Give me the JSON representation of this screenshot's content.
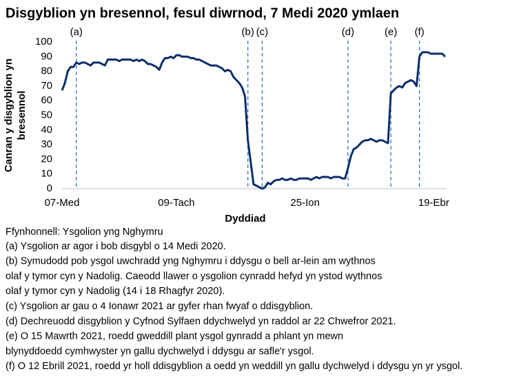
{
  "chart_data": {
    "type": "line",
    "title": "Disgyblion yn bresennol, fesul diwrnod, 7 Medi 2020 ymlaen",
    "xlabel": "Dyddiad",
    "ylabel": [
      "Canran y disgyblion yn",
      "bresennol"
    ],
    "categories": [
      "07-Med",
      null,
      null,
      null,
      null,
      null,
      null,
      null,
      null,
      null,
      null,
      null,
      null,
      null,
      null,
      null,
      null,
      null,
      null,
      null,
      null,
      null,
      null,
      null,
      null,
      null,
      null,
      null,
      null,
      null,
      null,
      null,
      null,
      null,
      null,
      null,
      null,
      null,
      null,
      null,
      "09-Tach",
      null,
      null,
      null,
      null,
      null,
      null,
      null,
      null,
      null,
      null,
      null,
      null,
      null,
      null,
      null,
      null,
      null,
      null,
      null,
      null,
      null,
      null,
      null,
      null,
      null,
      null,
      null,
      null,
      null,
      null,
      null,
      null,
      null,
      null,
      null,
      null,
      null,
      null,
      null,
      null,
      null,
      null,
      null,
      null,
      "25-Ion",
      null,
      null,
      null,
      null,
      null,
      null,
      null,
      null,
      null,
      null,
      null,
      null,
      null,
      null,
      null,
      null,
      null,
      null,
      null,
      null,
      null,
      null,
      null,
      null,
      null,
      null,
      null,
      null,
      null,
      null,
      null,
      null,
      null,
      null,
      null,
      null,
      null,
      null,
      null,
      null,
      null,
      null,
      null,
      null,
      "19-Ebr",
      null,
      null,
      null,
      null
    ],
    "series": [
      {
        "name": "Canran y disgyblion yn bresennol",
        "color": "#0b2d6b",
        "values": [
          67,
          72,
          80,
          83,
          83,
          86,
          85,
          86,
          86,
          85,
          84,
          86,
          86,
          86,
          85,
          84,
          88,
          88,
          88,
          88,
          87,
          88,
          88,
          88,
          88,
          87,
          88,
          87,
          88,
          87,
          85,
          85,
          84,
          83,
          81,
          86,
          89,
          89,
          90,
          89,
          91,
          91,
          90,
          90,
          90,
          89,
          89,
          88,
          88,
          87,
          86,
          85,
          84,
          84,
          84,
          83,
          82,
          80,
          81,
          80,
          76,
          74,
          72,
          69,
          63,
          33,
          18,
          3,
          2,
          1,
          0,
          1,
          4,
          3,
          5,
          6,
          6,
          7,
          6,
          6,
          7,
          6,
          6,
          7,
          7,
          7,
          7,
          6,
          7,
          8,
          7,
          8,
          8,
          8,
          7,
          8,
          8,
          8,
          7,
          7,
          14,
          22,
          27,
          28,
          30,
          32,
          33,
          33,
          34,
          33,
          32,
          33,
          33,
          32,
          31,
          65,
          67,
          69,
          70,
          69,
          72,
          73,
          74,
          73,
          70,
          90,
          93,
          93,
          93,
          92,
          92,
          92,
          92,
          92,
          90
        ]
      }
    ],
    "ylim": [
      0,
      100
    ],
    "yticks": [
      0,
      10,
      20,
      30,
      40,
      50,
      60,
      70,
      80,
      90,
      100
    ],
    "grid": false,
    "markers": [
      {
        "label": "(a)",
        "x": 5
      },
      {
        "label": "(b)",
        "x": 65
      },
      {
        "label": "(c)",
        "x": 70
      },
      {
        "label": "(d)",
        "x": 100
      },
      {
        "label": "(e)",
        "x": 115
      },
      {
        "label": "(f)",
        "x": 125
      }
    ],
    "marker_color": "#2f6fc4",
    "source": "Ffynhonnell: Ysgolion yng Nghymru",
    "notes": [
      [
        "(a) Ysgolion ar agor i bob disgybl o 14 Medi 2020."
      ],
      [
        "(b) Symudodd pob ysgol uwchradd yng Nghymru i ddysgu o bell ar-lein am wythnos",
        "olaf y tymor cyn y Nadolig. Caeodd llawer o ysgolion cynradd hefyd yn ystod wythnos",
        "olaf y tymor cyn y Nadolig (14 i 18 Rhagfyr 2020)."
      ],
      [
        "(c) Ysgolion ar gau o 4 Ionawr 2021 ar gyfer rhan fwyaf o ddisgyblion."
      ],
      [
        "(d) Dechreuodd disgyblion y Cyfnod Sylfaen ddychwelyd yn raddol ar 22 Chwefror 2021."
      ],
      [
        "(e) O 15 Mawrth 2021, roedd gweddill plant ysgol gynradd a phlant yn mewn",
        "blynyddoedd cymhwyster yn gallu dychwelyd i ddysgu ar safle'r ysgol."
      ],
      [
        "(f) O 12 Ebrill 2021, roedd yr holl ddisgyblion a oedd yn weddill yn gallu dychwelyd i ddysgu yn yr ysgol."
      ]
    ]
  }
}
